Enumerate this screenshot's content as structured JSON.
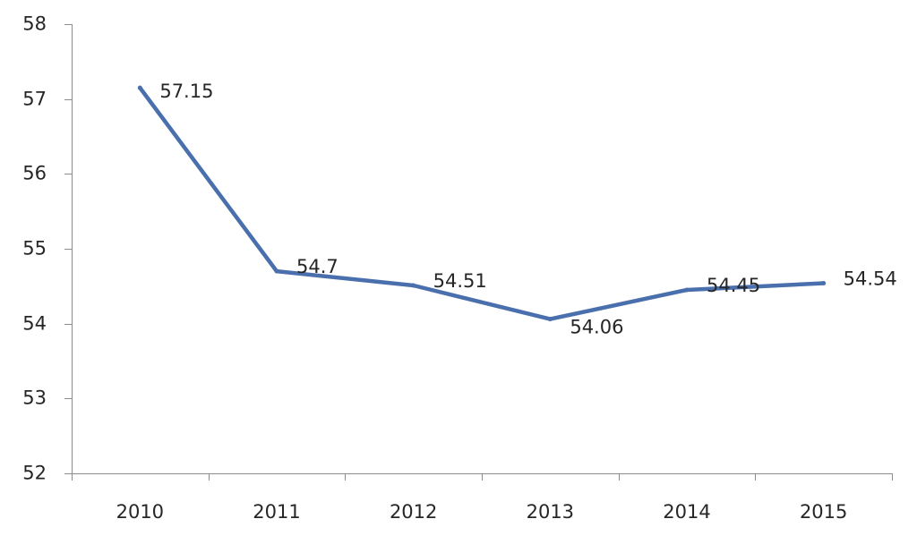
{
  "chart_data": {
    "type": "line",
    "title": "",
    "xlabel": "",
    "ylabel": "",
    "categories": [
      "2010",
      "2011",
      "2012",
      "2013",
      "2014",
      "2015"
    ],
    "series": [
      {
        "values": [
          57.15,
          54.7,
          54.51,
          54.06,
          54.45,
          54.54
        ],
        "data_labels": [
          "57.15",
          "54.7",
          "54.51",
          "54.06",
          "54.45",
          "54.54"
        ],
        "color": "#4a6fad"
      }
    ],
    "ylim": [
      52,
      58
    ],
    "y_ticks": [
      "52",
      "53",
      "54",
      "55",
      "56",
      "57",
      "58"
    ],
    "grid": false,
    "legend": "none"
  }
}
